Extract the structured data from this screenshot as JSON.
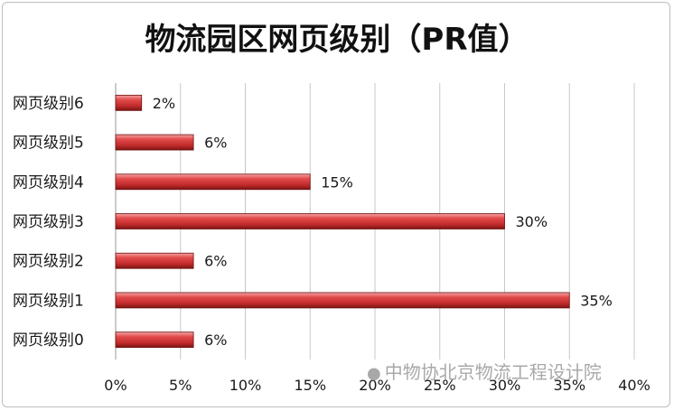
{
  "chart_data": {
    "type": "bar",
    "orientation": "horizontal",
    "title": "物流园区网页级别（PR值）",
    "categories": [
      "网页级别0",
      "网页级别1",
      "网页级别2",
      "网页级别3",
      "网页级别4",
      "网页级别5",
      "网页级别6"
    ],
    "values": [
      6,
      35,
      6,
      30,
      15,
      6,
      2
    ],
    "value_labels": [
      "6%",
      "35%",
      "6%",
      "30%",
      "15%",
      "6%",
      "2%"
    ],
    "xlim": [
      0,
      40
    ],
    "xticks": [
      0,
      5,
      10,
      15,
      20,
      25,
      30,
      35,
      40
    ],
    "xtick_labels": [
      "0%",
      "5%",
      "10%",
      "15%",
      "20%",
      "25%",
      "30%",
      "35%",
      "40%"
    ],
    "grid": "vertical",
    "bar_color": "#d03a3a"
  },
  "watermark": {
    "text": "中物协北京物流工程设计院",
    "icon": "wechat-icon"
  }
}
